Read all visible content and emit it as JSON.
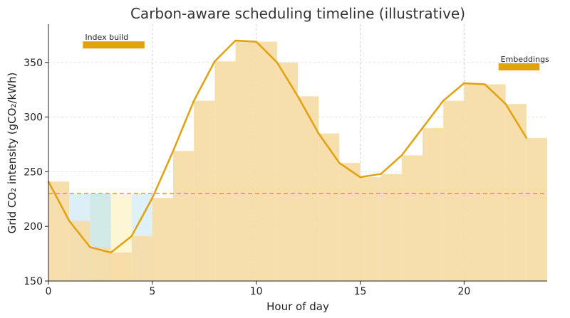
{
  "chart_data": {
    "type": "area",
    "title": "Carbon-aware scheduling timeline (illustrative)",
    "xlabel": "Hour of day",
    "ylabel": "Grid CO₂ intensity (gCO₂/kWh)",
    "xlim": [
      0,
      24
    ],
    "ylim": [
      150,
      385
    ],
    "x_ticks": [
      0,
      5,
      10,
      15,
      20
    ],
    "y_ticks": [
      150,
      200,
      250,
      300,
      350
    ],
    "grid": true,
    "hours": [
      0,
      1,
      2,
      3,
      4,
      5,
      6,
      7,
      8,
      9,
      10,
      11,
      12,
      13,
      14,
      15,
      16,
      17,
      18,
      19,
      20,
      21,
      22,
      23
    ],
    "intensity": [
      241,
      205,
      181,
      176,
      191,
      226,
      269,
      315,
      351,
      370,
      369,
      350,
      319,
      285,
      258,
      245,
      248,
      265,
      290,
      315,
      331,
      330,
      312,
      281
    ],
    "threshold": 230,
    "low_carbon_windows": [
      {
        "start": 1,
        "end": 2,
        "color": "#d6ecf7"
      },
      {
        "start": 2,
        "end": 3,
        "color": "#c9e6e3"
      },
      {
        "start": 3,
        "end": 4,
        "color": "#fbf4cc"
      },
      {
        "start": 4,
        "end": 5,
        "color": "#d9eef7"
      }
    ],
    "jobs": [
      {
        "name": "Index build",
        "start": 2,
        "end": 5,
        "y": 366
      },
      {
        "name": "Embeddings",
        "start": 22,
        "end": 24,
        "y": 346
      }
    ],
    "colors": {
      "area": "#f6dca4",
      "line": "#e2a10f",
      "job_bar": "#e2a10f",
      "threshold": "#e2a10f"
    }
  }
}
